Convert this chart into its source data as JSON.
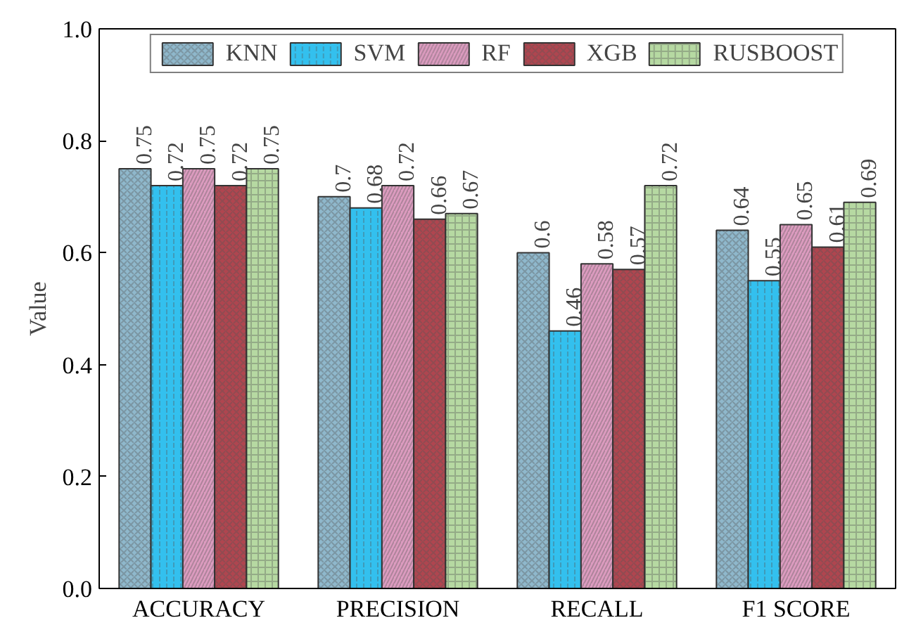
{
  "chart_data": {
    "type": "bar",
    "ylabel": "Value",
    "categories": [
      "ACCURACY",
      "PRECISION",
      "RECALL",
      "F1 SCORE"
    ],
    "series": [
      {
        "name": "KNN",
        "color": "#8fb8cc",
        "values": [
          0.75,
          0.7,
          0.6,
          0.64
        ]
      },
      {
        "name": "SVM",
        "color": "#33c0ee",
        "values": [
          0.72,
          0.68,
          0.46,
          0.55
        ]
      },
      {
        "name": "RF",
        "color": "#dd9cc0",
        "values": [
          0.75,
          0.72,
          0.58,
          0.65
        ]
      },
      {
        "name": "XGB",
        "color": "#b0454f",
        "values": [
          0.72,
          0.66,
          0.57,
          0.61
        ]
      },
      {
        "name": "RUSBOOST",
        "color": "#b6d9a2",
        "values": [
          0.75,
          0.67,
          0.72,
          0.69
        ]
      }
    ],
    "ylim": [
      0,
      1.0
    ],
    "yticks": [
      {
        "value": 0,
        "label": "0.0"
      },
      {
        "value": 0.2,
        "label": "0.2"
      },
      {
        "value": 0.4,
        "label": "0.4"
      },
      {
        "value": 0.6,
        "label": "0.6"
      },
      {
        "value": 0.8,
        "label": "0.8"
      },
      {
        "value": 1.0,
        "label": "1.0"
      }
    ],
    "data_labels": true,
    "legend": "top",
    "grid": false
  }
}
